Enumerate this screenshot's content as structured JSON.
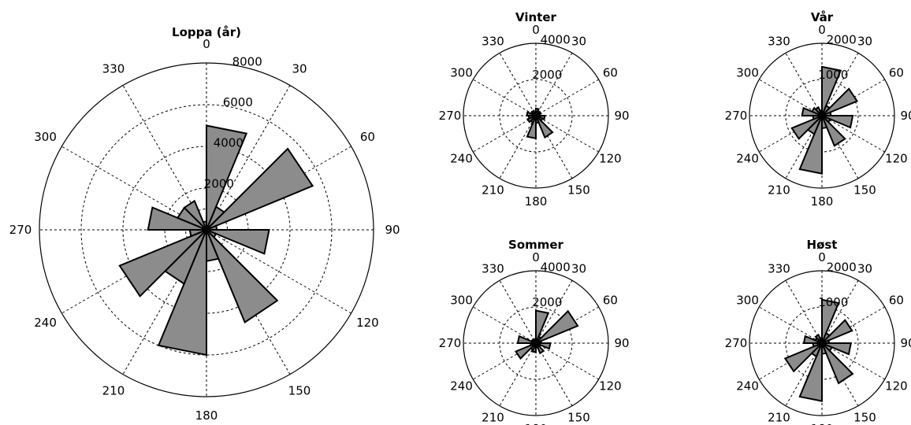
{
  "chart_data": [
    {
      "type": "polar-histogram",
      "title": "Loppa (år)",
      "rmax": 8000,
      "radial_ticks": [
        "2000",
        "4000",
        "6000",
        "8000"
      ],
      "radial_tick_values": [
        2000,
        4000,
        6000,
        8000
      ],
      "angle_ticks": [
        "0",
        "30",
        "60",
        "90",
        "120",
        "150",
        "180",
        "210",
        "240",
        "270",
        "300",
        "330"
      ],
      "bin_width_deg": 22.5,
      "bins": [
        {
          "start": 0,
          "value": 5000
        },
        {
          "start": 22.5,
          "value": 1200
        },
        {
          "start": 45,
          "value": 5500
        },
        {
          "start": 67.5,
          "value": 500
        },
        {
          "start": 90,
          "value": 3000
        },
        {
          "start": 112.5,
          "value": 500
        },
        {
          "start": 135,
          "value": 4800
        },
        {
          "start": 157.5,
          "value": 1500
        },
        {
          "start": 180,
          "value": 6000
        },
        {
          "start": 202.5,
          "value": 2800
        },
        {
          "start": 225,
          "value": 4500
        },
        {
          "start": 247.5,
          "value": 800
        },
        {
          "start": 270,
          "value": 2800
        },
        {
          "start": 292.5,
          "value": 1500
        },
        {
          "start": 315,
          "value": 1500
        },
        {
          "start": 337.5,
          "value": 400
        }
      ]
    },
    {
      "type": "polar-histogram",
      "title": "Vinter",
      "rmax": 4000,
      "radial_ticks": [
        "2000",
        "4000"
      ],
      "radial_tick_values": [
        2000,
        4000
      ],
      "angle_ticks": [
        "0",
        "30",
        "60",
        "90",
        "120",
        "150",
        "180",
        "210",
        "240",
        "270",
        "300",
        "330"
      ],
      "bin_width_deg": 22.5,
      "bins": [
        {
          "start": 0,
          "value": 400
        },
        {
          "start": 22.5,
          "value": 200
        },
        {
          "start": 45,
          "value": 300
        },
        {
          "start": 67.5,
          "value": 200
        },
        {
          "start": 90,
          "value": 500
        },
        {
          "start": 112.5,
          "value": 400
        },
        {
          "start": 135,
          "value": 1300
        },
        {
          "start": 157.5,
          "value": 400
        },
        {
          "start": 180,
          "value": 1250
        },
        {
          "start": 202.5,
          "value": 400
        },
        {
          "start": 225,
          "value": 500
        },
        {
          "start": 247.5,
          "value": 400
        },
        {
          "start": 270,
          "value": 500
        },
        {
          "start": 292.5,
          "value": 300
        },
        {
          "start": 315,
          "value": 300
        },
        {
          "start": 337.5,
          "value": 200
        }
      ]
    },
    {
      "type": "polar-histogram",
      "title": "Vår",
      "rmax": 2000,
      "radial_ticks": [
        "1000",
        "2000"
      ],
      "radial_tick_values": [
        1000,
        2000
      ],
      "angle_ticks": [
        "0",
        "30",
        "60",
        "90",
        "120",
        "150",
        "180",
        "210",
        "240",
        "270",
        "300",
        "330"
      ],
      "bin_width_deg": 22.5,
      "bins": [
        {
          "start": 0,
          "value": 1350
        },
        {
          "start": 22.5,
          "value": 300
        },
        {
          "start": 45,
          "value": 1050
        },
        {
          "start": 67.5,
          "value": 250
        },
        {
          "start": 90,
          "value": 850
        },
        {
          "start": 112.5,
          "value": 250
        },
        {
          "start": 135,
          "value": 900
        },
        {
          "start": 157.5,
          "value": 350
        },
        {
          "start": 180,
          "value": 1600
        },
        {
          "start": 202.5,
          "value": 550
        },
        {
          "start": 225,
          "value": 900
        },
        {
          "start": 247.5,
          "value": 250
        },
        {
          "start": 270,
          "value": 550
        },
        {
          "start": 292.5,
          "value": 300
        },
        {
          "start": 315,
          "value": 250
        },
        {
          "start": 337.5,
          "value": 150
        }
      ]
    },
    {
      "type": "polar-histogram",
      "title": "Sommer",
      "rmax": 4000,
      "radial_ticks": [
        "2000",
        "4000"
      ],
      "radial_tick_values": [
        2000,
        4000
      ],
      "angle_ticks": [
        "0",
        "30",
        "60",
        "90",
        "120",
        "150",
        "180",
        "210",
        "240",
        "270",
        "300",
        "330"
      ],
      "bin_width_deg": 22.5,
      "bins": [
        {
          "start": 0,
          "value": 1800
        },
        {
          "start": 22.5,
          "value": 400
        },
        {
          "start": 45,
          "value": 2500
        },
        {
          "start": 67.5,
          "value": 300
        },
        {
          "start": 90,
          "value": 800
        },
        {
          "start": 112.5,
          "value": 250
        },
        {
          "start": 135,
          "value": 600
        },
        {
          "start": 157.5,
          "value": 250
        },
        {
          "start": 180,
          "value": 500
        },
        {
          "start": 202.5,
          "value": 400
        },
        {
          "start": 225,
          "value": 1200
        },
        {
          "start": 247.5,
          "value": 300
        },
        {
          "start": 270,
          "value": 1000
        },
        {
          "start": 292.5,
          "value": 250
        },
        {
          "start": 315,
          "value": 250
        },
        {
          "start": 337.5,
          "value": 150
        }
      ]
    },
    {
      "type": "polar-histogram",
      "title": "Høst",
      "rmax": 2000,
      "radial_ticks": [
        "1000",
        "2000"
      ],
      "radial_tick_values": [
        1000,
        2000
      ],
      "angle_ticks": [
        "0",
        "30",
        "60",
        "90",
        "120",
        "150",
        "180",
        "210",
        "240",
        "270",
        "300",
        "330"
      ],
      "bin_width_deg": 22.5,
      "bins": [
        {
          "start": 0,
          "value": 1200
        },
        {
          "start": 22.5,
          "value": 300
        },
        {
          "start": 45,
          "value": 900
        },
        {
          "start": 67.5,
          "value": 200
        },
        {
          "start": 90,
          "value": 800
        },
        {
          "start": 112.5,
          "value": 300
        },
        {
          "start": 135,
          "value": 1200
        },
        {
          "start": 157.5,
          "value": 300
        },
        {
          "start": 180,
          "value": 1600
        },
        {
          "start": 202.5,
          "value": 400
        },
        {
          "start": 225,
          "value": 1100
        },
        {
          "start": 247.5,
          "value": 250
        },
        {
          "start": 270,
          "value": 500
        },
        {
          "start": 292.5,
          "value": 200
        },
        {
          "start": 315,
          "value": 250
        },
        {
          "start": 337.5,
          "value": 150
        }
      ]
    }
  ]
}
